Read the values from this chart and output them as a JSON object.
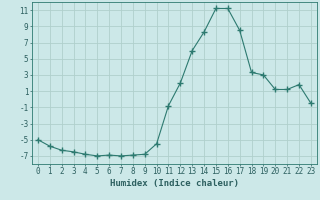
{
  "x": [
    0,
    1,
    2,
    3,
    4,
    5,
    6,
    7,
    8,
    9,
    10,
    11,
    12,
    13,
    14,
    15,
    16,
    17,
    18,
    19,
    20,
    21,
    22,
    23
  ],
  "y": [
    -5,
    -5.8,
    -6.3,
    -6.5,
    -6.8,
    -7.0,
    -6.9,
    -7.0,
    -6.9,
    -6.8,
    -5.5,
    -0.8,
    2.0,
    6.0,
    8.3,
    11.2,
    11.2,
    8.5,
    3.3,
    3.0,
    1.2,
    1.2,
    1.8,
    -0.5
  ],
  "line_color": "#2d7a70",
  "marker": "+",
  "marker_size": 4,
  "bg_color": "#cce8e8",
  "grid_color": "#b0d0cc",
  "xlabel": "Humidex (Indice chaleur)",
  "xlim": [
    -0.5,
    23.5
  ],
  "ylim": [
    -8,
    12
  ],
  "yticks": [
    -7,
    -5,
    -3,
    -1,
    1,
    3,
    5,
    7,
    9,
    11
  ],
  "xticks": [
    0,
    1,
    2,
    3,
    4,
    5,
    6,
    7,
    8,
    9,
    10,
    11,
    12,
    13,
    14,
    15,
    16,
    17,
    18,
    19,
    20,
    21,
    22,
    23
  ],
  "tick_label_color": "#2d6060",
  "xlabel_fontsize": 6.5,
  "tick_fontsize": 5.5,
  "ylabel_fontsize": 5.5
}
